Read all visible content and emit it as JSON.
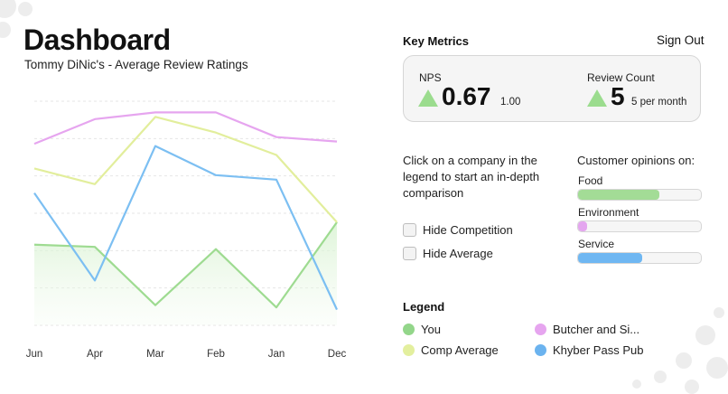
{
  "header": {
    "title": "Dashboard",
    "subtitle": "Tommy DiNic's - Average Review Ratings"
  },
  "sign_out_label": "Sign Out",
  "key_metrics": {
    "title": "Key Metrics",
    "nps": {
      "label": "NPS",
      "value": "0.67",
      "sub": "1.00",
      "trend_icon": "up-triangle-icon"
    },
    "review_count": {
      "label": "Review Count",
      "value": "5",
      "sub": "5 per month",
      "trend_icon": "up-triangle-icon"
    }
  },
  "instructions": "Click on a company in the legend to start an in-depth comparison",
  "toggles": [
    {
      "label": "Hide Competition",
      "checked": false
    },
    {
      "label": "Hide Average",
      "checked": false
    }
  ],
  "opinions": {
    "title": "Customer opinions on:",
    "items": [
      {
        "label": "Food",
        "value": 0.66,
        "color": "#a3dc96"
      },
      {
        "label": "Environment",
        "value": 0.07,
        "color": "#e4a6ef"
      },
      {
        "label": "Service",
        "value": 0.52,
        "color": "#6fb7f2"
      }
    ]
  },
  "legend": {
    "title": "Legend",
    "items": [
      {
        "label": "You",
        "color": "#93d68a"
      },
      {
        "label": "Butcher and Si...",
        "color": "#e6a5ef"
      },
      {
        "label": "Comp Average",
        "color": "#e3ef9e"
      },
      {
        "label": "Khyber Pass Pub",
        "color": "#6bb3ef"
      }
    ]
  },
  "chart_data": {
    "type": "line",
    "title": "",
    "xlabel": "",
    "ylabel": "",
    "categories": [
      "Jun",
      "Apr",
      "Mar",
      "Feb",
      "Jan",
      "Dec"
    ],
    "ylim": [
      0,
      5
    ],
    "grid": true,
    "series": [
      {
        "name": "You",
        "color": "#9edb91",
        "fill": true,
        "values": [
          1.8,
          1.75,
          0.45,
          1.7,
          0.4,
          2.3
        ]
      },
      {
        "name": "Butcher and Si...",
        "color": "#e6a5ef",
        "fill": false,
        "values": [
          4.05,
          4.6,
          4.75,
          4.75,
          4.2,
          4.1
        ]
      },
      {
        "name": "Comp Average",
        "color": "#e2ee9c",
        "fill": false,
        "values": [
          3.5,
          3.15,
          4.65,
          4.3,
          3.8,
          2.3
        ]
      },
      {
        "name": "Khyber Pass Pub",
        "color": "#7cbff2",
        "fill": false,
        "values": [
          2.95,
          1.0,
          4.0,
          3.35,
          3.25,
          0.35
        ]
      }
    ]
  }
}
